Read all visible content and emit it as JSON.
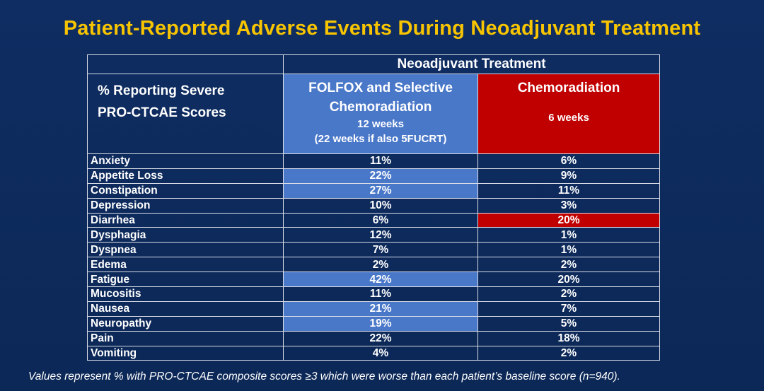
{
  "title": "Patient-Reported Adverse Events During Neoadjuvant Treatment",
  "table": {
    "group_header": "Neoadjuvant Treatment",
    "row_header_line1": "% Reporting Severe",
    "row_header_line2": "PRO-CTCAE Scores",
    "col1": {
      "name_line1": "FOLFOX and Selective",
      "name_line2": "Chemoradiation",
      "duration": "12 weeks",
      "note": "(22 weeks if also 5FUCRT)"
    },
    "col2": {
      "name": "Chemoradiation",
      "duration": "6 weeks"
    },
    "rows": [
      {
        "label": "Anxiety",
        "folfox": "11%",
        "chemo": "6%",
        "highlight": ""
      },
      {
        "label": "Appetite Loss",
        "folfox": "22%",
        "chemo": "9%",
        "highlight": "folfox"
      },
      {
        "label": "Constipation",
        "folfox": "27%",
        "chemo": "11%",
        "highlight": "folfox"
      },
      {
        "label": "Depression",
        "folfox": "10%",
        "chemo": "3%",
        "highlight": ""
      },
      {
        "label": "Diarrhea",
        "folfox": "6%",
        "chemo": "20%",
        "highlight": "chemo"
      },
      {
        "label": "Dysphagia",
        "folfox": "12%",
        "chemo": "1%",
        "highlight": ""
      },
      {
        "label": "Dyspnea",
        "folfox": "7%",
        "chemo": "1%",
        "highlight": ""
      },
      {
        "label": "Edema",
        "folfox": "2%",
        "chemo": "2%",
        "highlight": ""
      },
      {
        "label": "Fatigue",
        "folfox": "42%",
        "chemo": "20%",
        "highlight": "folfox"
      },
      {
        "label": "Mucositis",
        "folfox": "11%",
        "chemo": "2%",
        "highlight": ""
      },
      {
        "label": "Nausea",
        "folfox": "21%",
        "chemo": "7%",
        "highlight": "folfox"
      },
      {
        "label": "Neuropathy",
        "folfox": "19%",
        "chemo": "5%",
        "highlight": "folfox"
      },
      {
        "label": "Pain",
        "folfox": "22%",
        "chemo": "18%",
        "highlight": ""
      },
      {
        "label": "Vomiting",
        "folfox": "4%",
        "chemo": "2%",
        "highlight": ""
      }
    ]
  },
  "footnote": "Values represent % with PRO-CTCAE composite scores ≥3 which were worse than each patient’s baseline score (n=940).",
  "colors": {
    "background": "#0d2a5c",
    "title": "#f7c400",
    "folfox_highlight": "#4a78c9",
    "chemo_highlight": "#c00000"
  }
}
